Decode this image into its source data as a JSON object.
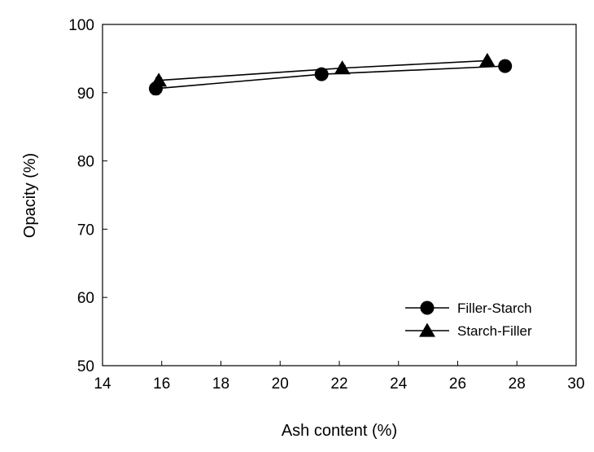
{
  "chart_data": {
    "type": "line",
    "xlabel": "Ash content (%)",
    "ylabel": "Opacity (%)",
    "xlim": [
      14,
      30
    ],
    "ylim": [
      50,
      100
    ],
    "xticks": [
      14,
      16,
      18,
      20,
      22,
      24,
      26,
      28,
      30
    ],
    "yticks": [
      50,
      60,
      70,
      80,
      90,
      100
    ],
    "grid": false,
    "legend_position": "bottom-right",
    "series": [
      {
        "name": "Filler-Starch",
        "marker": "circle",
        "color": "#000000",
        "x": [
          15.8,
          21.4,
          27.6
        ],
        "y": [
          90.6,
          92.7,
          93.9
        ],
        "error": [
          0.9,
          0.6,
          0.4
        ]
      },
      {
        "name": "Starch-Filler",
        "marker": "triangle",
        "color": "#000000",
        "x": [
          15.9,
          22.1,
          27.0
        ],
        "y": [
          91.8,
          93.6,
          94.7
        ],
        "error": [
          0.4,
          0.4,
          0.3
        ]
      }
    ]
  }
}
